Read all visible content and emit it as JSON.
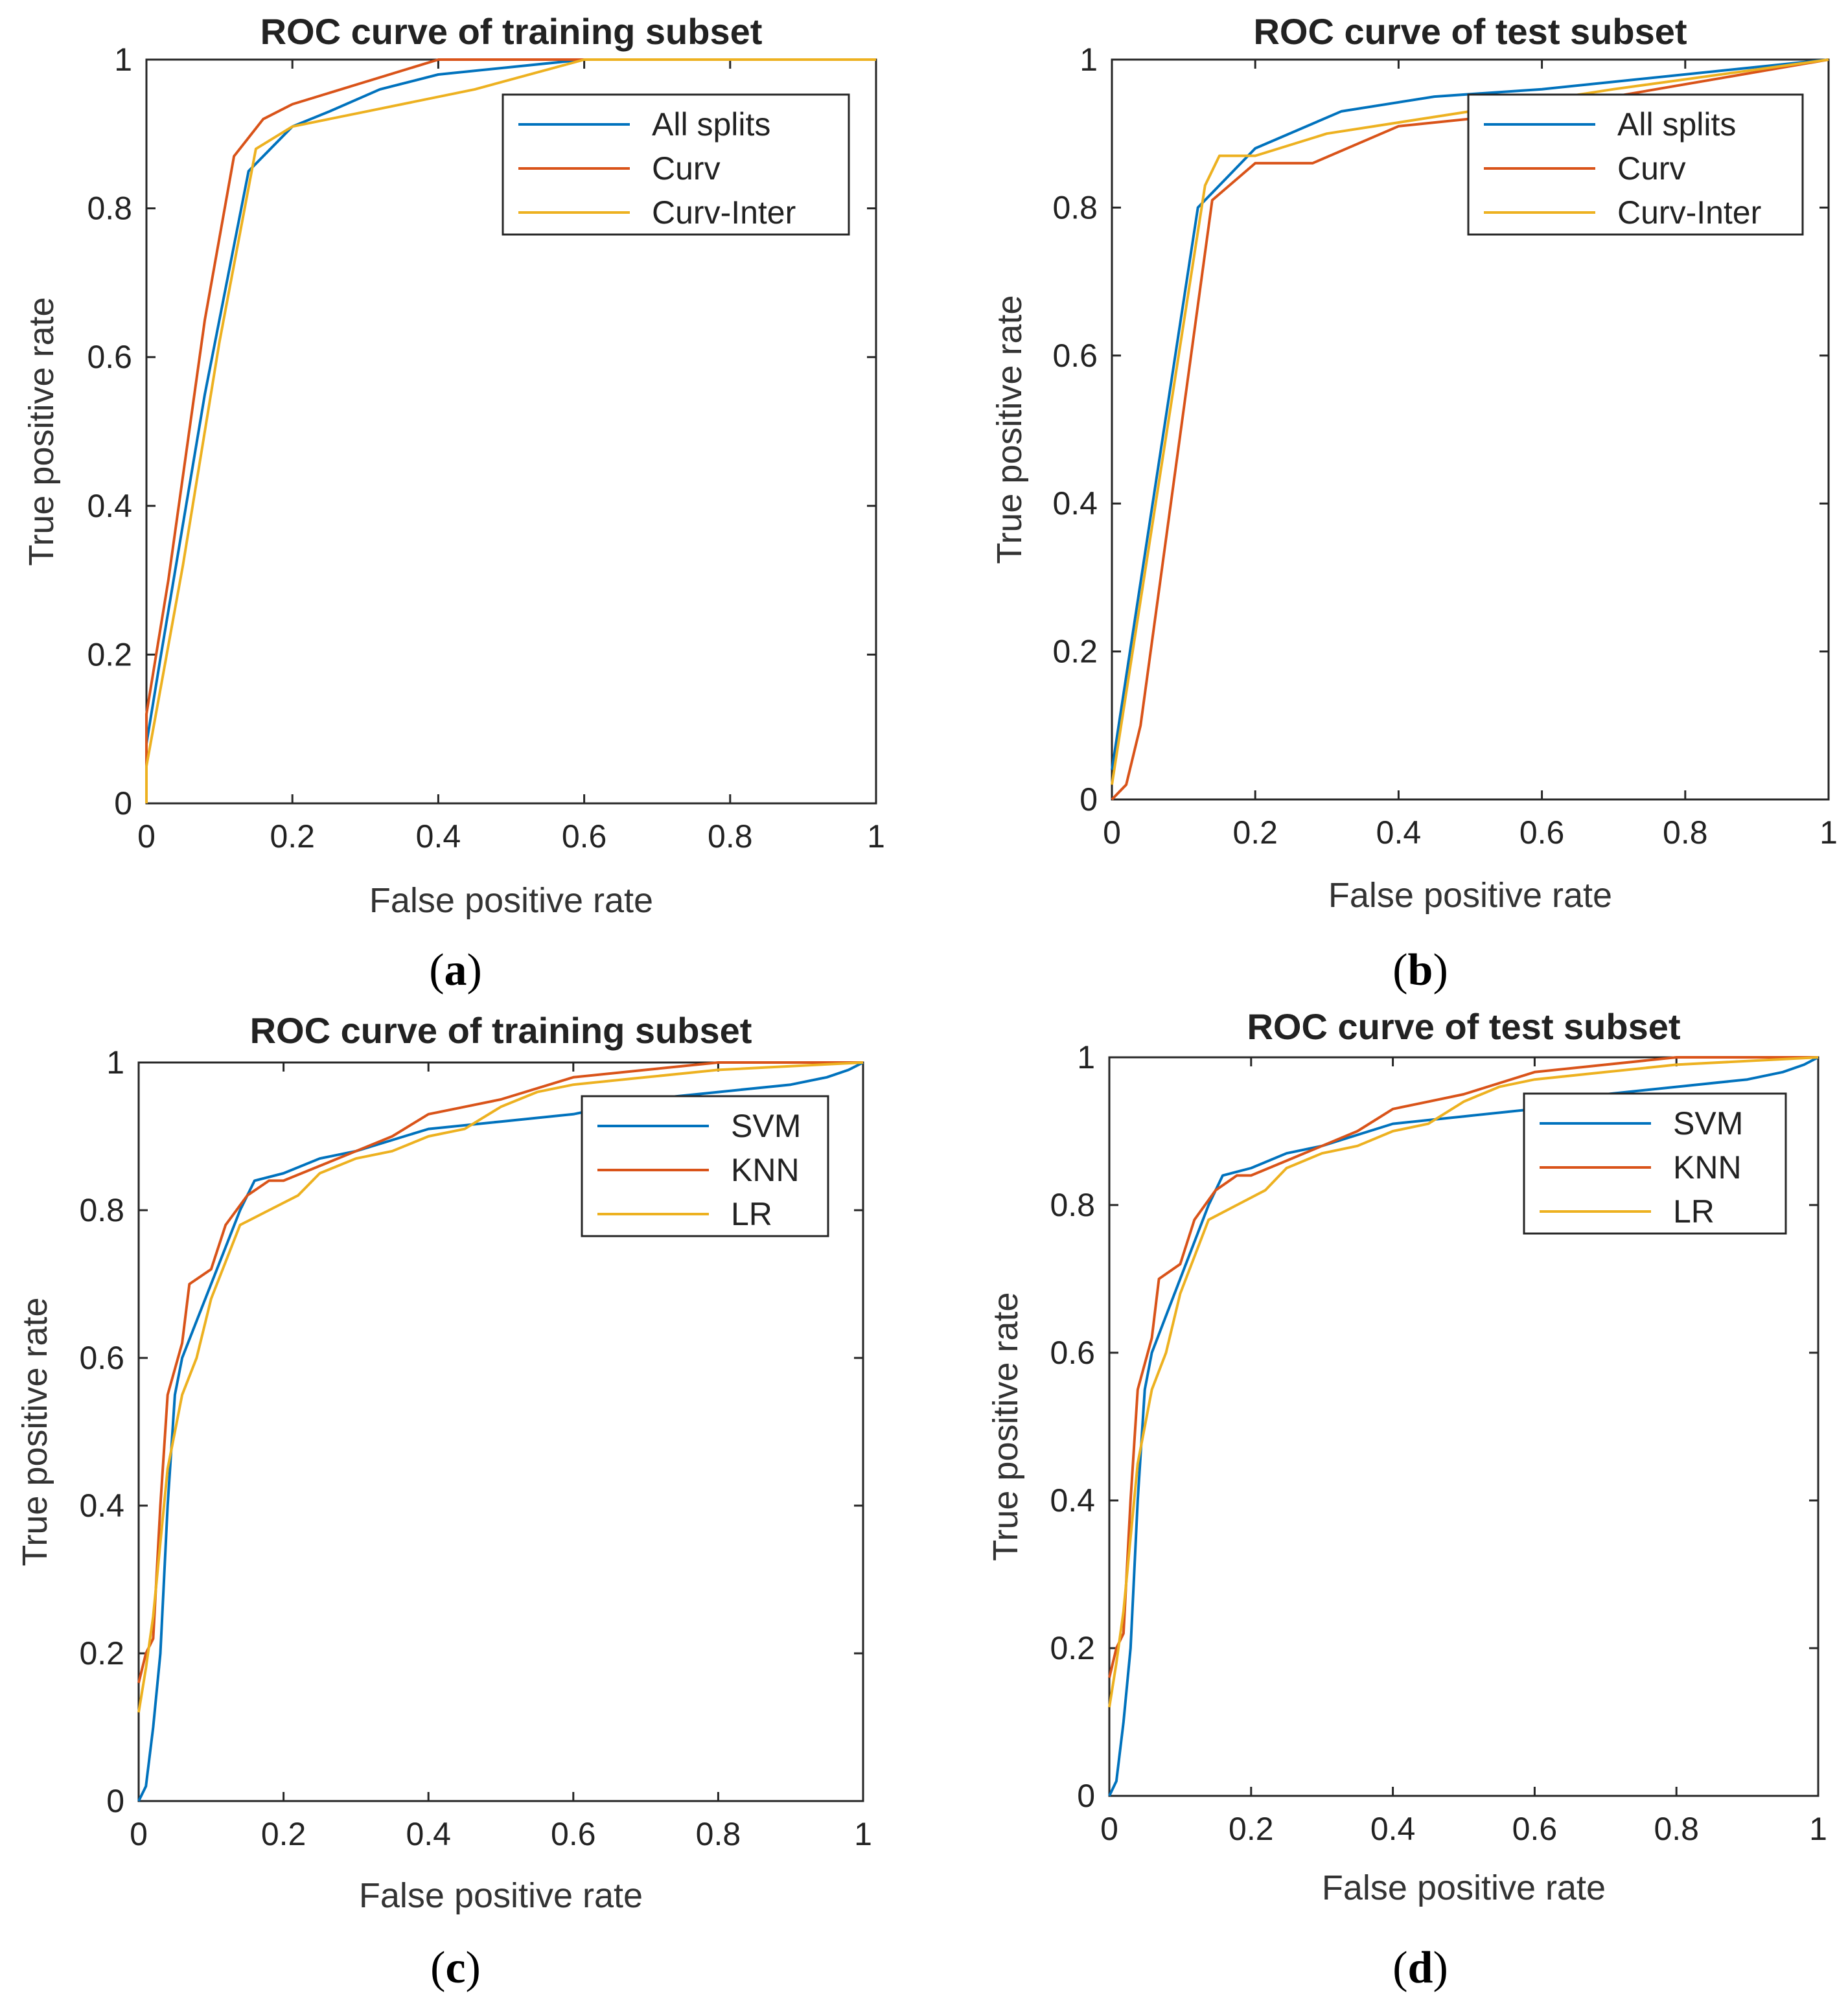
{
  "chart_data": [
    {
      "type": "line",
      "panel": "a",
      "title": "ROC curve of training subset",
      "xlabel": "False positive rate",
      "ylabel": "True positive rate",
      "xlim": [
        0,
        1
      ],
      "ylim": [
        0,
        1
      ],
      "xticks": [
        "0",
        "0.2",
        "0.4",
        "0.6",
        "0.8",
        "1"
      ],
      "yticks": [
        "0",
        "0.2",
        "0.4",
        "0.6",
        "0.8",
        "1"
      ],
      "legend_position": "top-right",
      "series": [
        {
          "name": "All splits",
          "color": "#0072BD",
          "points": [
            [
              0,
              0
            ],
            [
              0,
              0.08
            ],
            [
              0.02,
              0.2
            ],
            [
              0.08,
              0.55
            ],
            [
              0.14,
              0.85
            ],
            [
              0.2,
              0.91
            ],
            [
              0.25,
              0.93
            ],
            [
              0.32,
              0.96
            ],
            [
              0.4,
              0.98
            ],
            [
              0.5,
              0.99
            ],
            [
              0.6,
              1
            ],
            [
              1,
              1
            ]
          ]
        },
        {
          "name": "Curv",
          "color": "#D95319",
          "points": [
            [
              0,
              0
            ],
            [
              0,
              0.12
            ],
            [
              0.03,
              0.3
            ],
            [
              0.08,
              0.65
            ],
            [
              0.12,
              0.87
            ],
            [
              0.16,
              0.92
            ],
            [
              0.2,
              0.94
            ],
            [
              0.3,
              0.97
            ],
            [
              0.4,
              1
            ],
            [
              1,
              1
            ]
          ]
        },
        {
          "name": "Curv-Inter",
          "color": "#EDB120",
          "points": [
            [
              0,
              0
            ],
            [
              0,
              0.05
            ],
            [
              0.05,
              0.32
            ],
            [
              0.1,
              0.62
            ],
            [
              0.15,
              0.88
            ],
            [
              0.2,
              0.91
            ],
            [
              0.3,
              0.93
            ],
            [
              0.45,
              0.96
            ],
            [
              0.6,
              1
            ],
            [
              1,
              1
            ]
          ]
        }
      ]
    },
    {
      "type": "line",
      "panel": "b",
      "title": "ROC curve of test subset",
      "xlabel": "False positive rate",
      "ylabel": "True positive rate",
      "xlim": [
        0,
        1
      ],
      "ylim": [
        0,
        1
      ],
      "xticks": [
        "0",
        "0.2",
        "0.4",
        "0.6",
        "0.8",
        "1"
      ],
      "yticks": [
        "0",
        "0.2",
        "0.4",
        "0.6",
        "0.8",
        "1"
      ],
      "legend_position": "top-right",
      "series": [
        {
          "name": "All splits",
          "color": "#0072BD",
          "points": [
            [
              0,
              0.04
            ],
            [
              0.12,
              0.8
            ],
            [
              0.2,
              0.88
            ],
            [
              0.32,
              0.93
            ],
            [
              0.45,
              0.95
            ],
            [
              0.6,
              0.96
            ],
            [
              1,
              1
            ]
          ]
        },
        {
          "name": "Curv",
          "color": "#D95319",
          "points": [
            [
              0,
              0
            ],
            [
              0.02,
              0.02
            ],
            [
              0.04,
              0.1
            ],
            [
              0.14,
              0.81
            ],
            [
              0.2,
              0.86
            ],
            [
              0.28,
              0.86
            ],
            [
              0.4,
              0.91
            ],
            [
              0.5,
              0.92
            ],
            [
              0.7,
              0.95
            ],
            [
              1,
              1
            ]
          ]
        },
        {
          "name": "Curv-Inter",
          "color": "#EDB120",
          "points": [
            [
              0,
              0.02
            ],
            [
              0.13,
              0.83
            ],
            [
              0.15,
              0.87
            ],
            [
              0.2,
              0.87
            ],
            [
              0.3,
              0.9
            ],
            [
              0.5,
              0.93
            ],
            [
              0.7,
              0.96
            ],
            [
              1,
              1
            ]
          ]
        }
      ]
    },
    {
      "type": "line",
      "panel": "c",
      "title": "ROC curve of training subset",
      "xlabel": "False positive rate",
      "ylabel": "True positive rate",
      "xlim": [
        0,
        1
      ],
      "ylim": [
        0,
        1
      ],
      "xticks": [
        "0",
        "0.2",
        "0.4",
        "0.6",
        "0.8",
        "1"
      ],
      "yticks": [
        "0",
        "0.2",
        "0.4",
        "0.6",
        "0.8",
        "1"
      ],
      "legend_position": "top-right",
      "series": [
        {
          "name": "SVM",
          "color": "#0072BD",
          "points": [
            [
              0,
              0
            ],
            [
              0.01,
              0.02
            ],
            [
              0.02,
              0.1
            ],
            [
              0.03,
              0.2
            ],
            [
              0.04,
              0.4
            ],
            [
              0.05,
              0.55
            ],
            [
              0.06,
              0.6
            ],
            [
              0.08,
              0.65
            ],
            [
              0.1,
              0.7
            ],
            [
              0.12,
              0.75
            ],
            [
              0.14,
              0.8
            ],
            [
              0.16,
              0.84
            ],
            [
              0.2,
              0.85
            ],
            [
              0.25,
              0.87
            ],
            [
              0.3,
              0.88
            ],
            [
              0.4,
              0.91
            ],
            [
              0.5,
              0.92
            ],
            [
              0.6,
              0.93
            ],
            [
              0.7,
              0.95
            ],
            [
              0.8,
              0.96
            ],
            [
              0.9,
              0.97
            ],
            [
              0.95,
              0.98
            ],
            [
              0.98,
              0.99
            ],
            [
              1,
              1
            ]
          ]
        },
        {
          "name": "KNN",
          "color": "#D95319",
          "points": [
            [
              0,
              0.16
            ],
            [
              0.01,
              0.2
            ],
            [
              0.02,
              0.22
            ],
            [
              0.03,
              0.4
            ],
            [
              0.04,
              0.55
            ],
            [
              0.06,
              0.62
            ],
            [
              0.07,
              0.7
            ],
            [
              0.1,
              0.72
            ],
            [
              0.12,
              0.78
            ],
            [
              0.15,
              0.82
            ],
            [
              0.18,
              0.84
            ],
            [
              0.2,
              0.84
            ],
            [
              0.25,
              0.86
            ],
            [
              0.3,
              0.88
            ],
            [
              0.35,
              0.9
            ],
            [
              0.4,
              0.93
            ],
            [
              0.45,
              0.94
            ],
            [
              0.5,
              0.95
            ],
            [
              0.6,
              0.98
            ],
            [
              0.7,
              0.99
            ],
            [
              0.8,
              1
            ],
            [
              1,
              1
            ]
          ]
        },
        {
          "name": "LR",
          "color": "#EDB120",
          "points": [
            [
              0,
              0.12
            ],
            [
              0.01,
              0.18
            ],
            [
              0.02,
              0.25
            ],
            [
              0.03,
              0.35
            ],
            [
              0.04,
              0.45
            ],
            [
              0.06,
              0.55
            ],
            [
              0.08,
              0.6
            ],
            [
              0.1,
              0.68
            ],
            [
              0.14,
              0.78
            ],
            [
              0.18,
              0.8
            ],
            [
              0.22,
              0.82
            ],
            [
              0.25,
              0.85
            ],
            [
              0.3,
              0.87
            ],
            [
              0.35,
              0.88
            ],
            [
              0.4,
              0.9
            ],
            [
              0.45,
              0.91
            ],
            [
              0.5,
              0.94
            ],
            [
              0.55,
              0.96
            ],
            [
              0.6,
              0.97
            ],
            [
              0.7,
              0.98
            ],
            [
              0.8,
              0.99
            ],
            [
              1,
              1
            ]
          ]
        }
      ]
    },
    {
      "type": "line",
      "panel": "d",
      "title": "ROC curve of test subset",
      "xlabel": "False positive rate",
      "ylabel": "True positive rate",
      "xlim": [
        0,
        1
      ],
      "ylim": [
        0,
        1
      ],
      "xticks": [
        "0",
        "0.2",
        "0.4",
        "0.6",
        "0.8",
        "1"
      ],
      "yticks": [
        "0",
        "0.2",
        "0.4",
        "0.6",
        "0.8",
        "1"
      ],
      "legend_position": "top-right",
      "series": [
        {
          "name": "SVM",
          "color": "#0072BD",
          "points": [
            [
              0,
              0
            ],
            [
              0.01,
              0.02
            ],
            [
              0.02,
              0.1
            ],
            [
              0.03,
              0.2
            ],
            [
              0.04,
              0.4
            ],
            [
              0.05,
              0.55
            ],
            [
              0.06,
              0.6
            ],
            [
              0.08,
              0.65
            ],
            [
              0.1,
              0.7
            ],
            [
              0.12,
              0.75
            ],
            [
              0.14,
              0.8
            ],
            [
              0.16,
              0.84
            ],
            [
              0.2,
              0.85
            ],
            [
              0.25,
              0.87
            ],
            [
              0.3,
              0.88
            ],
            [
              0.4,
              0.91
            ],
            [
              0.5,
              0.92
            ],
            [
              0.6,
              0.93
            ],
            [
              0.7,
              0.95
            ],
            [
              0.8,
              0.96
            ],
            [
              0.9,
              0.97
            ],
            [
              0.95,
              0.98
            ],
            [
              0.98,
              0.99
            ],
            [
              1,
              1
            ]
          ]
        },
        {
          "name": "KNN",
          "color": "#D95319",
          "points": [
            [
              0,
              0.16
            ],
            [
              0.01,
              0.2
            ],
            [
              0.02,
              0.22
            ],
            [
              0.03,
              0.4
            ],
            [
              0.04,
              0.55
            ],
            [
              0.06,
              0.62
            ],
            [
              0.07,
              0.7
            ],
            [
              0.1,
              0.72
            ],
            [
              0.12,
              0.78
            ],
            [
              0.15,
              0.82
            ],
            [
              0.18,
              0.84
            ],
            [
              0.2,
              0.84
            ],
            [
              0.25,
              0.86
            ],
            [
              0.3,
              0.88
            ],
            [
              0.35,
              0.9
            ],
            [
              0.4,
              0.93
            ],
            [
              0.45,
              0.94
            ],
            [
              0.5,
              0.95
            ],
            [
              0.6,
              0.98
            ],
            [
              0.7,
              0.99
            ],
            [
              0.8,
              1
            ],
            [
              1,
              1
            ]
          ]
        },
        {
          "name": "LR",
          "color": "#EDB120",
          "points": [
            [
              0,
              0.12
            ],
            [
              0.01,
              0.18
            ],
            [
              0.02,
              0.25
            ],
            [
              0.03,
              0.35
            ],
            [
              0.04,
              0.45
            ],
            [
              0.06,
              0.55
            ],
            [
              0.08,
              0.6
            ],
            [
              0.1,
              0.68
            ],
            [
              0.14,
              0.78
            ],
            [
              0.18,
              0.8
            ],
            [
              0.22,
              0.82
            ],
            [
              0.25,
              0.85
            ],
            [
              0.3,
              0.87
            ],
            [
              0.35,
              0.88
            ],
            [
              0.4,
              0.9
            ],
            [
              0.45,
              0.91
            ],
            [
              0.5,
              0.94
            ],
            [
              0.55,
              0.96
            ],
            [
              0.6,
              0.97
            ],
            [
              0.7,
              0.98
            ],
            [
              0.8,
              0.99
            ],
            [
              1,
              1
            ]
          ]
        }
      ]
    }
  ],
  "captions": [
    {
      "open": "(",
      "letter": "a",
      "close": ")"
    },
    {
      "open": "(",
      "letter": "b",
      "close": ")"
    },
    {
      "open": "(",
      "letter": "c",
      "close": ")"
    },
    {
      "open": "(",
      "letter": "d",
      "close": ")"
    }
  ]
}
